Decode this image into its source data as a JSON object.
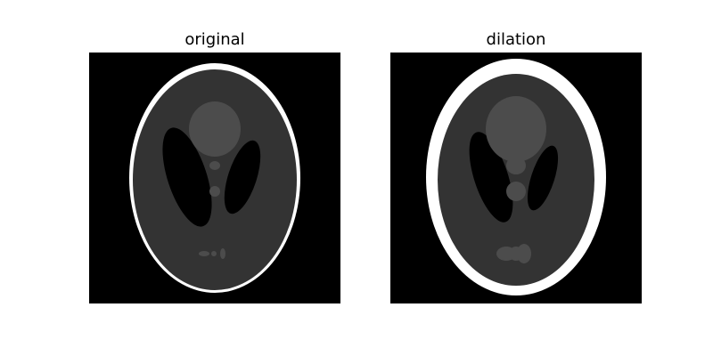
{
  "panels": [
    {
      "title": "original",
      "image": "shepp-logan-phantom",
      "colors": {
        "background": "#000000",
        "skull": "#ffffff",
        "brain": "#333333",
        "ventricle": "#000000",
        "lesion": "#4c4c4c"
      }
    },
    {
      "title": "dilation",
      "image": "shepp-logan-phantom-dilated",
      "colors": {
        "background": "#000000",
        "skull": "#ffffff",
        "brain": "#333333",
        "ventricle": "#000000",
        "lesion": "#4c4c4c"
      }
    }
  ]
}
